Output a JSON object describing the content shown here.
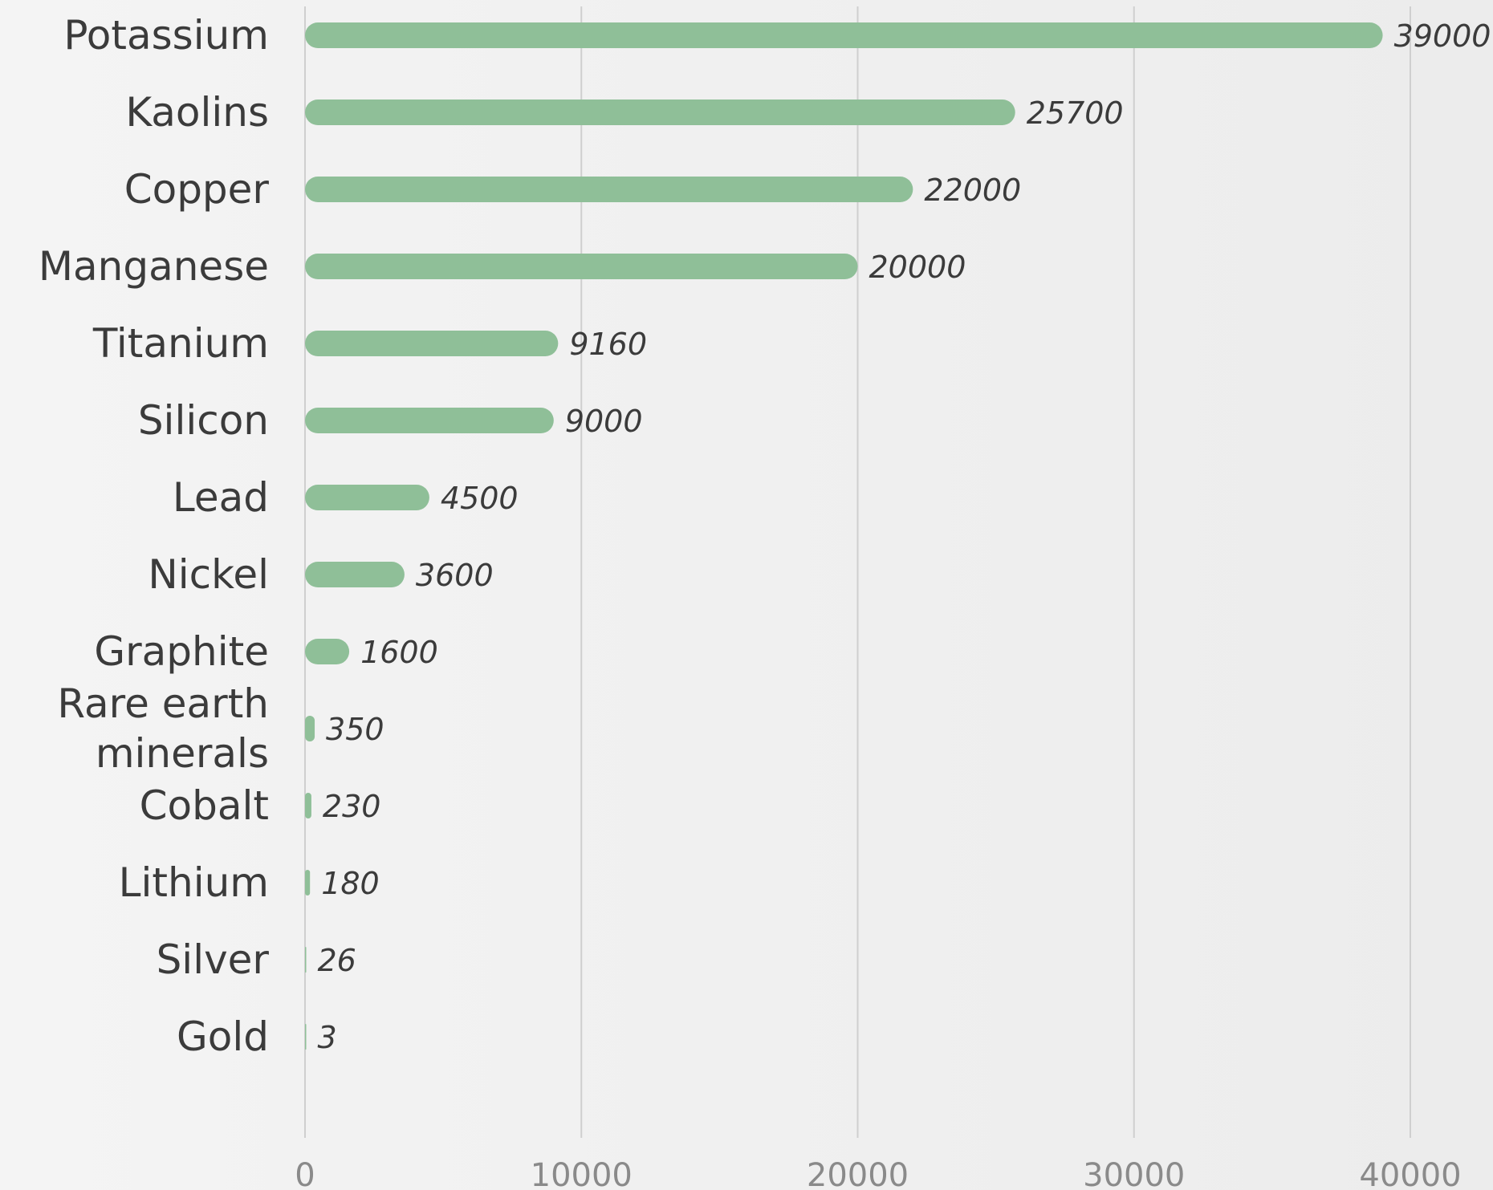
{
  "chart_data": {
    "type": "bar",
    "orientation": "horizontal",
    "categories": [
      "Potassium",
      "Kaolins",
      "Copper",
      "Manganese",
      "Titanium",
      "Silicon",
      "Lead",
      "Nickel",
      "Graphite",
      "Rare earth minerals",
      "Cobalt",
      "Lithium",
      "Silver",
      "Gold"
    ],
    "category_lines": [
      [
        "Potassium"
      ],
      [
        "Kaolins"
      ],
      [
        "Copper"
      ],
      [
        "Manganese"
      ],
      [
        "Titanium"
      ],
      [
        "Silicon"
      ],
      [
        "Lead"
      ],
      [
        "Nickel"
      ],
      [
        "Graphite"
      ],
      [
        "Rare earth",
        "minerals"
      ],
      [
        "Cobalt"
      ],
      [
        "Lithium"
      ],
      [
        "Silver"
      ],
      [
        "Gold"
      ]
    ],
    "values": [
      39000,
      25700,
      22000,
      20000,
      9160,
      9000,
      4500,
      3600,
      1600,
      350,
      230,
      180,
      26,
      3
    ],
    "value_labels": [
      "39000",
      "25700",
      "22000",
      "20000",
      "9160",
      "9000",
      "4500",
      "3600",
      "1600",
      "350",
      "230",
      "180",
      "26",
      "3"
    ],
    "title": "",
    "xlabel": "",
    "ylabel": "",
    "xlim": [
      0,
      40000
    ],
    "x_ticks": [
      0,
      10000,
      20000,
      30000,
      40000
    ],
    "x_tick_labels": [
      "0",
      "10000",
      "20000",
      "30000",
      "40000"
    ],
    "grid": true,
    "legend": "none",
    "bar_color": "#8fbf98"
  }
}
